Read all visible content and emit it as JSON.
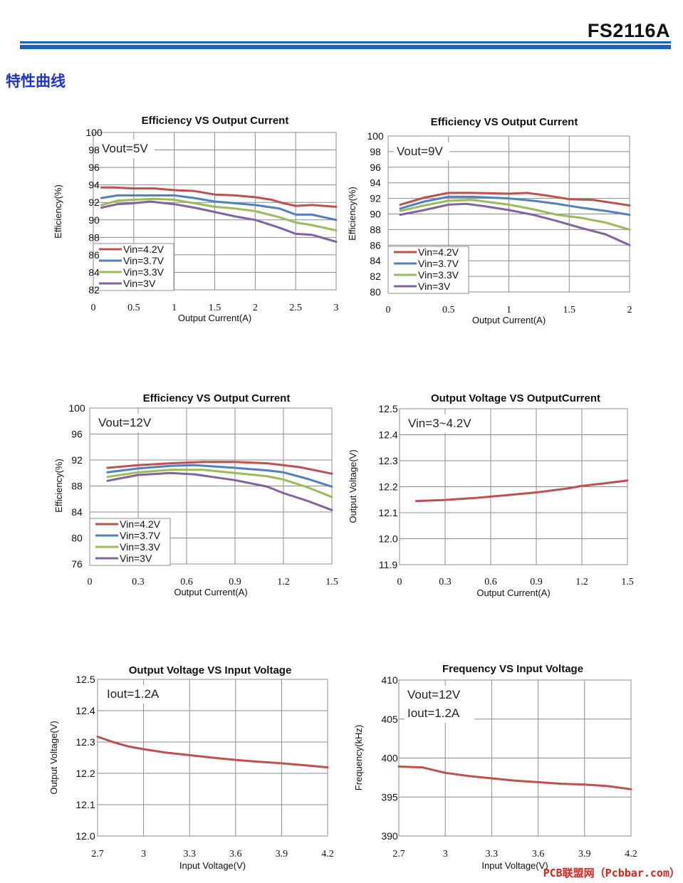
{
  "header": {
    "part_number": "FS2116A",
    "accent_color": "#1f5fb5"
  },
  "section_title": "特性曲线",
  "watermark": "PCB联盟网（Pcbbar.com）",
  "chart_data": [
    {
      "type": "line",
      "title": "Efficiency VS Output Current",
      "xlabel": "Output Current(A)",
      "ylabel": "Efficiency(%)",
      "annotation": [
        "Vout=5V"
      ],
      "xlim": [
        0,
        3
      ],
      "ylim": [
        82,
        100
      ],
      "xticks": [
        "0",
        "0.5",
        "1",
        "1.5",
        "2",
        "2.5",
        "3"
      ],
      "yticks": [
        "82",
        "84",
        "86",
        "88",
        "90",
        "92",
        "94",
        "96",
        "98",
        "100"
      ],
      "legend_position": "bottom-left",
      "series": [
        {
          "name": "Vin=4.2V",
          "color": "#c0504d",
          "points": [
            [
              0.1,
              93.7
            ],
            [
              0.25,
              93.7
            ],
            [
              0.5,
              93.6
            ],
            [
              0.75,
              93.6
            ],
            [
              1,
              93.4
            ],
            [
              1.25,
              93.3
            ],
            [
              1.5,
              92.9
            ],
            [
              1.75,
              92.8
            ],
            [
              2,
              92.6
            ],
            [
              2.2,
              92.3
            ],
            [
              2.35,
              91.9
            ],
            [
              2.5,
              91.6
            ],
            [
              2.7,
              91.7
            ],
            [
              3,
              91.5
            ]
          ]
        },
        {
          "name": "Vin=3.7V",
          "color": "#4f81bd",
          "points": [
            [
              0.1,
              92.5
            ],
            [
              0.3,
              92.8
            ],
            [
              0.5,
              92.8
            ],
            [
              0.75,
              92.8
            ],
            [
              1,
              92.8
            ],
            [
              1.25,
              92.5
            ],
            [
              1.5,
              92.1
            ],
            [
              1.75,
              91.9
            ],
            [
              2,
              91.7
            ],
            [
              2.3,
              91.3
            ],
            [
              2.5,
              90.6
            ],
            [
              2.7,
              90.6
            ],
            [
              3,
              90.0
            ]
          ]
        },
        {
          "name": "Vin=3.3V",
          "color": "#9bbb59",
          "points": [
            [
              0.1,
              91.7
            ],
            [
              0.3,
              92.2
            ],
            [
              0.5,
              92.3
            ],
            [
              0.75,
              92.4
            ],
            [
              1,
              92.3
            ],
            [
              1.25,
              91.9
            ],
            [
              1.5,
              91.5
            ],
            [
              1.75,
              91.3
            ],
            [
              2,
              91.0
            ],
            [
              2.3,
              90.3
            ],
            [
              2.5,
              89.7
            ],
            [
              2.7,
              89.4
            ],
            [
              3,
              88.8
            ]
          ]
        },
        {
          "name": "Vin=3V",
          "color": "#8064a2",
          "points": [
            [
              0.1,
              91.4
            ],
            [
              0.3,
              91.8
            ],
            [
              0.5,
              91.9
            ],
            [
              0.7,
              92.1
            ],
            [
              1,
              91.8
            ],
            [
              1.25,
              91.4
            ],
            [
              1.5,
              90.9
            ],
            [
              1.75,
              90.4
            ],
            [
              2,
              90.0
            ],
            [
              2.3,
              89.1
            ],
            [
              2.5,
              88.4
            ],
            [
              2.7,
              88.3
            ],
            [
              3,
              87.5
            ]
          ]
        }
      ]
    },
    {
      "type": "line",
      "title": "Efficiency VS Output Current",
      "xlabel": "Output Current(A)",
      "ylabel": "Efficiency(%)",
      "annotation": [
        "Vout=9V"
      ],
      "xlim": [
        0,
        2
      ],
      "ylim": [
        80,
        100
      ],
      "xticks": [
        "0",
        "0.5",
        "1",
        "1.5",
        "2"
      ],
      "yticks": [
        "80",
        "82",
        "84",
        "86",
        "88",
        "90",
        "92",
        "94",
        "96",
        "98",
        "100"
      ],
      "legend_position": "bottom-left",
      "series": [
        {
          "name": "Vin=4.2V",
          "color": "#c0504d",
          "points": [
            [
              0.1,
              91.2
            ],
            [
              0.3,
              92.1
            ],
            [
              0.5,
              92.7
            ],
            [
              0.7,
              92.7
            ],
            [
              1,
              92.6
            ],
            [
              1.15,
              92.7
            ],
            [
              1.3,
              92.4
            ],
            [
              1.5,
              91.9
            ],
            [
              1.7,
              91.8
            ],
            [
              2,
              91.1
            ]
          ]
        },
        {
          "name": "Vin=3.7V",
          "color": "#4f81bd",
          "points": [
            [
              0.1,
              90.7
            ],
            [
              0.3,
              91.6
            ],
            [
              0.5,
              92.2
            ],
            [
              0.7,
              92.2
            ],
            [
              1,
              92.0
            ],
            [
              1.2,
              91.7
            ],
            [
              1.4,
              91.3
            ],
            [
              1.6,
              90.8
            ],
            [
              1.8,
              90.4
            ],
            [
              2,
              89.9
            ]
          ]
        },
        {
          "name": "Vin=3.3V",
          "color": "#9bbb59",
          "points": [
            [
              0.1,
              90.4
            ],
            [
              0.3,
              91.1
            ],
            [
              0.5,
              91.7
            ],
            [
              0.7,
              91.8
            ],
            [
              1,
              91.2
            ],
            [
              1.2,
              90.6
            ],
            [
              1.4,
              89.9
            ],
            [
              1.6,
              89.5
            ],
            [
              1.8,
              88.9
            ],
            [
              2,
              88.0
            ]
          ]
        },
        {
          "name": "Vin=3V",
          "color": "#8064a2",
          "points": [
            [
              0.1,
              89.9
            ],
            [
              0.3,
              90.5
            ],
            [
              0.5,
              91.2
            ],
            [
              0.65,
              91.3
            ],
            [
              0.8,
              91.0
            ],
            [
              1,
              90.5
            ],
            [
              1.2,
              89.9
            ],
            [
              1.4,
              89.1
            ],
            [
              1.6,
              88.2
            ],
            [
              1.8,
              87.4
            ],
            [
              2,
              86.0
            ]
          ]
        }
      ]
    },
    {
      "type": "line",
      "title": "Efficiency VS Output Current",
      "xlabel": "Output Current(A)",
      "ylabel": "Efficiency(%)",
      "annotation": [
        "Vout=12V"
      ],
      "xlim": [
        0,
        1.5
      ],
      "ylim": [
        76,
        100
      ],
      "xticks": [
        "0",
        "0.3",
        "0.6",
        "0.9",
        "1.2",
        "1.5"
      ],
      "yticks": [
        "76",
        "80",
        "84",
        "88",
        "92",
        "96",
        "100"
      ],
      "legend_position": "bottom-left",
      "series": [
        {
          "name": "Vin=4.2V",
          "color": "#c0504d",
          "points": [
            [
              0.11,
              90.8
            ],
            [
              0.3,
              91.2
            ],
            [
              0.5,
              91.5
            ],
            [
              0.7,
              91.7
            ],
            [
              0.9,
              91.7
            ],
            [
              1.1,
              91.5
            ],
            [
              1.3,
              90.9
            ],
            [
              1.5,
              89.9
            ]
          ]
        },
        {
          "name": "Vin=3.7V",
          "color": "#4f81bd",
          "points": [
            [
              0.11,
              90.1
            ],
            [
              0.3,
              90.7
            ],
            [
              0.5,
              91.1
            ],
            [
              0.65,
              91.2
            ],
            [
              0.9,
              90.8
            ],
            [
              1.1,
              90.4
            ],
            [
              1.2,
              90.1
            ],
            [
              1.35,
              89.1
            ],
            [
              1.5,
              87.9
            ]
          ]
        },
        {
          "name": "Vin=3.3V",
          "color": "#9bbb59",
          "points": [
            [
              0.11,
              89.4
            ],
            [
              0.3,
              90.1
            ],
            [
              0.5,
              90.5
            ],
            [
              0.7,
              90.5
            ],
            [
              0.9,
              90.0
            ],
            [
              1.1,
              89.5
            ],
            [
              1.2,
              89.0
            ],
            [
              1.35,
              87.8
            ],
            [
              1.5,
              86.3
            ]
          ]
        },
        {
          "name": "Vin=3V",
          "color": "#8064a2",
          "points": [
            [
              0.11,
              88.8
            ],
            [
              0.3,
              89.7
            ],
            [
              0.5,
              90.0
            ],
            [
              0.65,
              89.8
            ],
            [
              0.9,
              88.9
            ],
            [
              1.1,
              87.9
            ],
            [
              1.2,
              86.9
            ],
            [
              1.35,
              85.7
            ],
            [
              1.5,
              84.3
            ]
          ]
        }
      ]
    },
    {
      "type": "line",
      "title": "Output Voltage VS OutputCurrent",
      "xlabel": "Output Current(A)",
      "ylabel": "Output Voltage(V)",
      "annotation": [
        "Vin=3~4.2V"
      ],
      "xlim": [
        0,
        1.5
      ],
      "ylim": [
        11.9,
        12.5
      ],
      "xticks": [
        "0",
        "0.3",
        "0.6",
        "0.9",
        "1.2",
        "1.5"
      ],
      "yticks": [
        "11.9",
        "12.0",
        "12.1",
        "12.2",
        "12.3",
        "12.4",
        "12.5"
      ],
      "series": [
        {
          "color": "#c0504d",
          "points": [
            [
              0.11,
              12.145
            ],
            [
              0.3,
              12.149
            ],
            [
              0.5,
              12.157
            ],
            [
              0.7,
              12.167
            ],
            [
              0.9,
              12.178
            ],
            [
              1.1,
              12.193
            ],
            [
              1.2,
              12.203
            ],
            [
              1.35,
              12.213
            ],
            [
              1.5,
              12.224
            ]
          ]
        }
      ]
    },
    {
      "type": "line",
      "title": "Output Voltage VS Input Voltage",
      "xlabel": "Input Voltage(V)",
      "ylabel": "Output Voltage(V)",
      "annotation": [
        "Iout=1.2A"
      ],
      "xlim": [
        2.7,
        4.2
      ],
      "ylim": [
        12.0,
        12.5
      ],
      "xticks": [
        "2.7",
        "3",
        "3.3",
        "3.6",
        "3.9",
        "4.2"
      ],
      "yticks": [
        "12.0",
        "12.1",
        "12.2",
        "12.3",
        "12.4",
        "12.5"
      ],
      "series": [
        {
          "color": "#c0504d",
          "points": [
            [
              2.7,
              12.317
            ],
            [
              2.8,
              12.3
            ],
            [
              2.9,
              12.286
            ],
            [
              3.0,
              12.277
            ],
            [
              3.15,
              12.266
            ],
            [
              3.3,
              12.258
            ],
            [
              3.45,
              12.25
            ],
            [
              3.6,
              12.243
            ],
            [
              3.75,
              12.237
            ],
            [
              3.9,
              12.232
            ],
            [
              4.05,
              12.226
            ],
            [
              4.2,
              12.219
            ]
          ]
        }
      ]
    },
    {
      "type": "line",
      "title": "Frequency VS Input Voltage",
      "xlabel": "Input Voltage(V)",
      "ylabel": "Frequency(kHz)",
      "annotation": [
        "Vout=12V",
        "Iout=1.2A"
      ],
      "xlim": [
        2.7,
        4.2
      ],
      "ylim": [
        390,
        410
      ],
      "xticks": [
        "2.7",
        "3",
        "3.3",
        "3.6",
        "3.9",
        "4.2"
      ],
      "yticks": [
        "390",
        "395",
        "400",
        "405",
        "410"
      ],
      "series": [
        {
          "color": "#c0504d",
          "points": [
            [
              2.7,
              398.9
            ],
            [
              2.85,
              398.8
            ],
            [
              3.0,
              398.1
            ],
            [
              3.15,
              397.7
            ],
            [
              3.3,
              397.4
            ],
            [
              3.45,
              397.1
            ],
            [
              3.6,
              396.9
            ],
            [
              3.75,
              396.7
            ],
            [
              3.9,
              396.6
            ],
            [
              4.05,
              396.4
            ],
            [
              4.2,
              396.0
            ]
          ]
        }
      ]
    }
  ]
}
